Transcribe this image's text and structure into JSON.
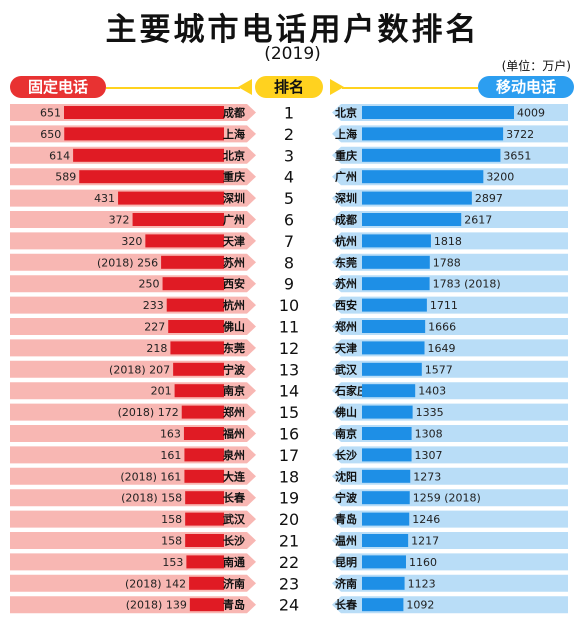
{
  "title": "主要城市电话用户数排名",
  "subtitle": "(2019)",
  "unit_note": "(单位：万户)",
  "headers": {
    "left": "固定电话",
    "middle": "排名",
    "right": "移动电话"
  },
  "colors": {
    "fixed_bar": "#e01b24",
    "fixed_row": "#f8b7b3",
    "mobile_bar": "#1e8fe6",
    "mobile_row": "#b9ddf7",
    "rank_arrow": "#ffd21f"
  },
  "chart_data": [
    {
      "type": "bar",
      "title": "固定电话",
      "orientation": "horizontal",
      "ranks": [
        1,
        2,
        3,
        4,
        5,
        6,
        7,
        8,
        9,
        10,
        11,
        12,
        13,
        14,
        15,
        16,
        17,
        18,
        19,
        20,
        21,
        22,
        23,
        24
      ],
      "categories": [
        "成都",
        "上海",
        "北京",
        "重庆",
        "深圳",
        "广州",
        "天津",
        "苏州",
        "西安",
        "杭州",
        "佛山",
        "东莞",
        "宁波",
        "南京",
        "郑州",
        "福州",
        "泉州",
        "大连",
        "长春",
        "武汉",
        "长沙",
        "南通",
        "济南",
        "青岛"
      ],
      "values": [
        651,
        650,
        614,
        589,
        431,
        372,
        320,
        256,
        250,
        233,
        227,
        218,
        207,
        201,
        172,
        163,
        161,
        161,
        158,
        158,
        158,
        153,
        142,
        139
      ],
      "value_labels": [
        "651",
        "650",
        "614",
        "589",
        "431",
        "372",
        "320",
        "(2018) 256",
        "250",
        "233",
        "227",
        "218",
        "(2018) 207",
        "201",
        "(2018) 172",
        "163",
        "161",
        "(2018) 161",
        "(2018) 158",
        "158",
        "158",
        "153",
        "(2018) 142",
        "(2018) 139"
      ]
    },
    {
      "type": "bar",
      "title": "移动电话",
      "orientation": "horizontal",
      "ranks": [
        1,
        2,
        3,
        4,
        5,
        6,
        7,
        8,
        9,
        10,
        11,
        12,
        13,
        14,
        15,
        16,
        17,
        18,
        19,
        20,
        21,
        22,
        23,
        24
      ],
      "categories": [
        "北京",
        "上海",
        "重庆",
        "广州",
        "深圳",
        "成都",
        "杭州",
        "东莞",
        "苏州",
        "西安",
        "郑州",
        "天津",
        "武汉",
        "石家庄",
        "佛山",
        "南京",
        "长沙",
        "沈阳",
        "宁波",
        "青岛",
        "温州",
        "昆明",
        "济南",
        "长春"
      ],
      "values": [
        4009,
        3722,
        3651,
        3200,
        2897,
        2617,
        1818,
        1788,
        1783,
        1711,
        1666,
        1649,
        1577,
        1403,
        1335,
        1308,
        1307,
        1273,
        1259,
        1246,
        1217,
        1160,
        1123,
        1092
      ],
      "value_labels": [
        "4009",
        "3722",
        "3651",
        "3200",
        "2897",
        "2617",
        "1818",
        "1788",
        "1783 (2018)",
        "1711",
        "1666",
        "1649",
        "1577",
        "1403",
        "1335",
        "1308",
        "1307",
        "1273",
        "1259 (2018)",
        "1246",
        "1217",
        "1160",
        "1123",
        "1092"
      ]
    }
  ]
}
